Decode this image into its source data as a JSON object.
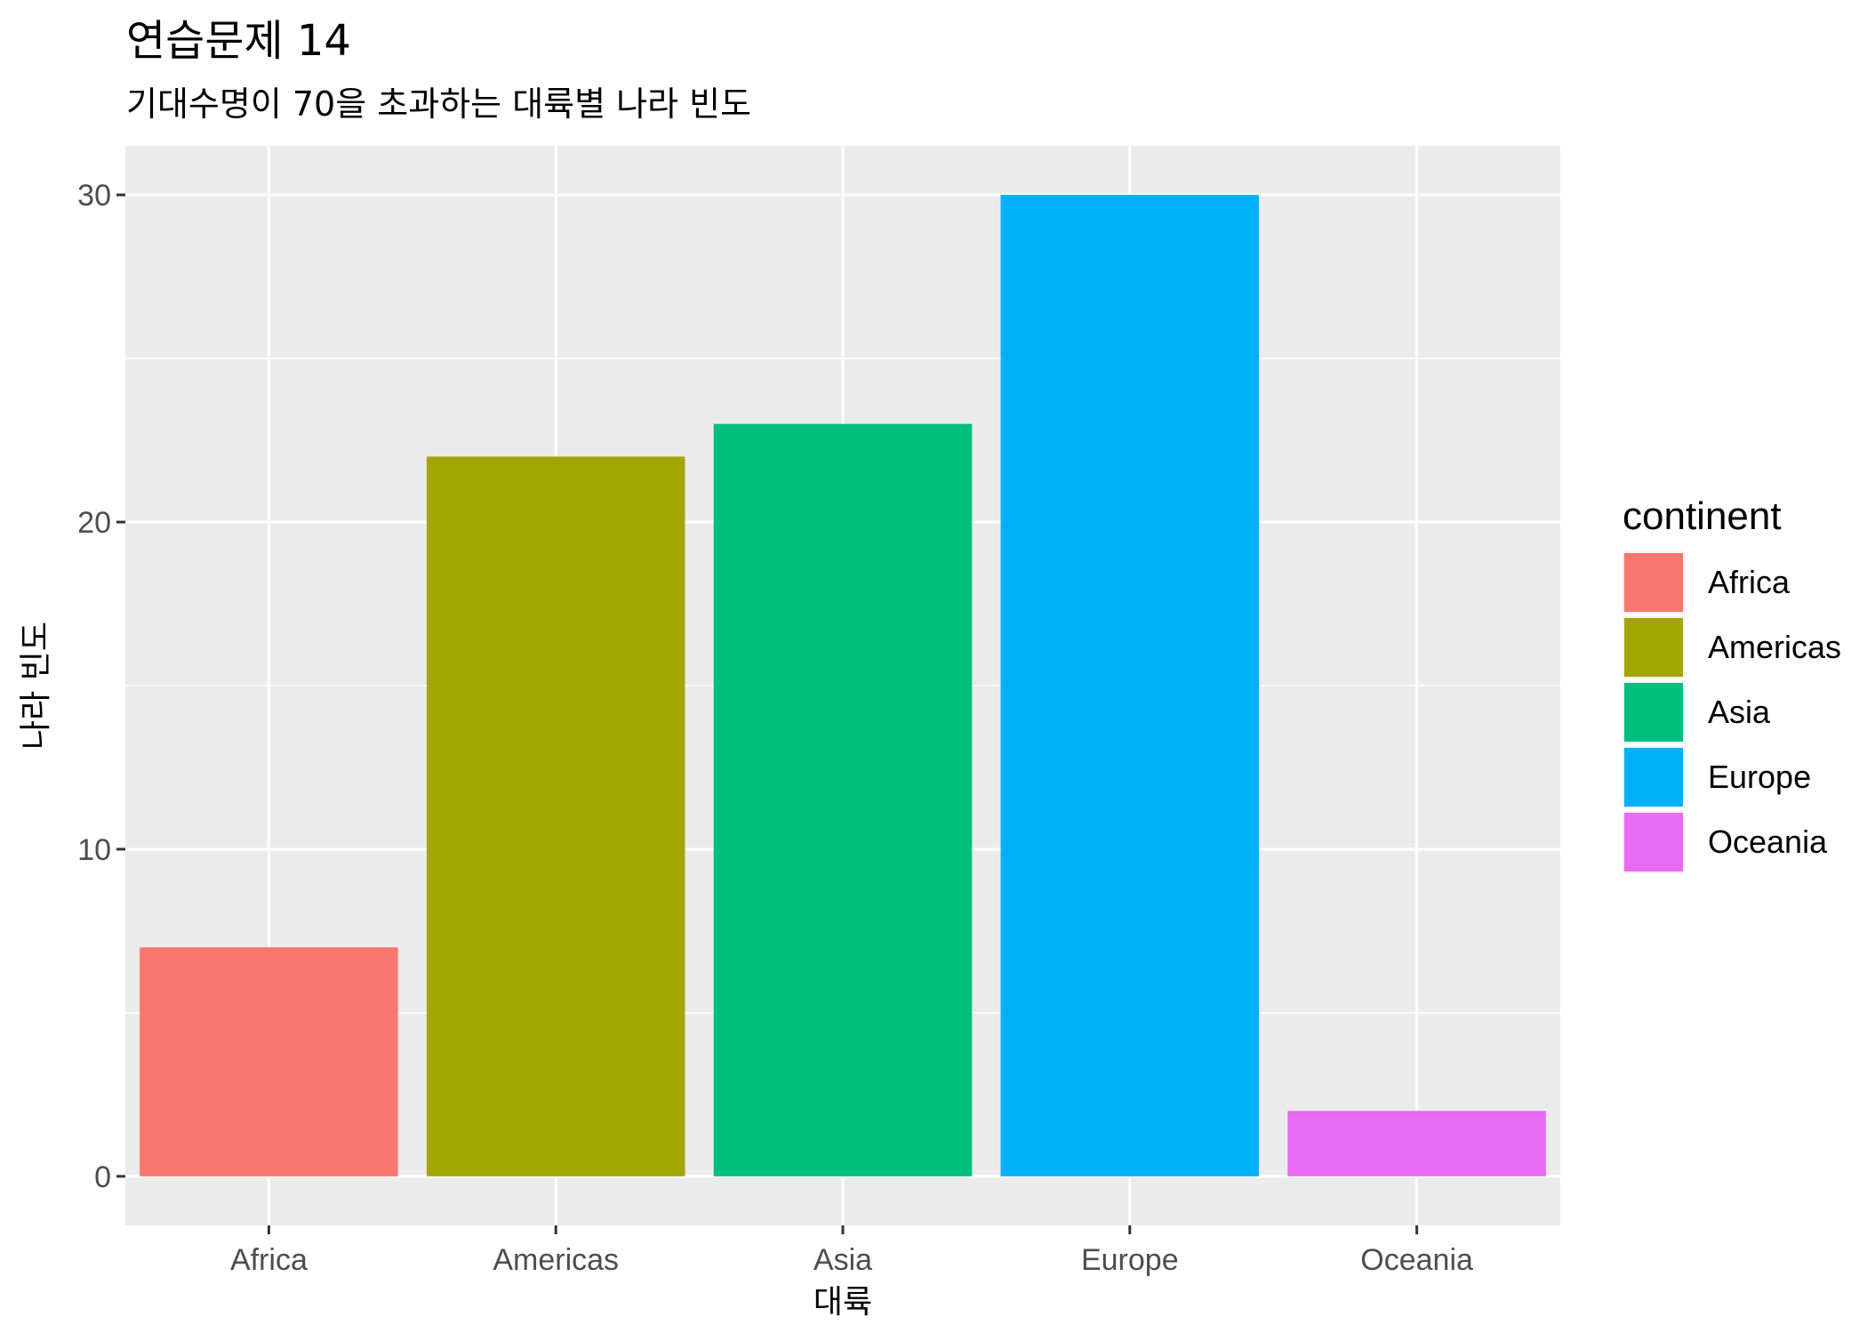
{
  "chart_data": {
    "type": "bar",
    "title": "연습문제 14",
    "subtitle": "기대수명이 70을 초과하는 대륙별 나라 빈도",
    "xlabel": "대륙",
    "ylabel": "나라 빈도",
    "categories": [
      "Africa",
      "Americas",
      "Asia",
      "Europe",
      "Oceania"
    ],
    "values": [
      7,
      22,
      23,
      30,
      2
    ],
    "colors": [
      "#F8766D",
      "#A3A500",
      "#00BF7D",
      "#00B0F6",
      "#E76BF3"
    ],
    "ylim": [
      -1.5,
      31.5
    ],
    "yticks": [
      0,
      10,
      20,
      30
    ],
    "ytick_labels": [
      "0",
      "10",
      "20",
      "30"
    ],
    "grid": true,
    "panel_background": "#EBEBEB",
    "legend": {
      "title": "continent",
      "position": "right",
      "entries": [
        "Africa",
        "Americas",
        "Asia",
        "Europe",
        "Oceania"
      ]
    }
  }
}
